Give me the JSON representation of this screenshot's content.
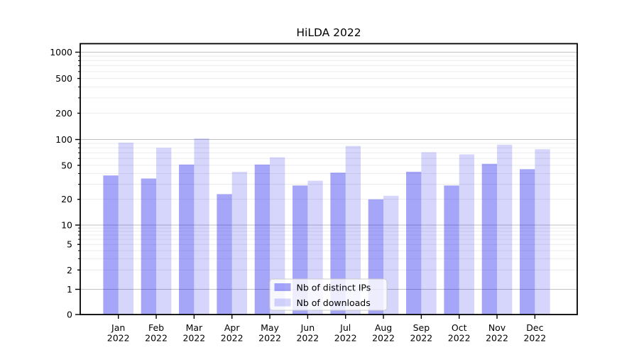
{
  "figure": {
    "title": "HiLDA 2022"
  },
  "chart_data": {
    "type": "bar",
    "title": "HiLDA 2022",
    "yscale": "symlog",
    "ylim": [
      0,
      1250
    ],
    "grid": "both",
    "legend_position": "lower-center",
    "xlabel": "",
    "ylabel": "",
    "categories": [
      "Jan 2022",
      "Feb 2022",
      "Mar 2022",
      "Apr 2022",
      "May 2022",
      "Jun 2022",
      "Jul 2022",
      "Aug 2022",
      "Sep 2022",
      "Oct 2022",
      "Nov 2022",
      "Dec 2022"
    ],
    "month_labels": [
      "Jan",
      "Feb",
      "Mar",
      "Apr",
      "May",
      "Jun",
      "Jul",
      "Aug",
      "Sep",
      "Oct",
      "Nov",
      "Dec"
    ],
    "year_label": "2022",
    "yticks": [
      0,
      1,
      2,
      5,
      10,
      20,
      50,
      100,
      200,
      500,
      1000
    ],
    "series": [
      {
        "name": "Nb of distinct IPs",
        "color": "#0000ee",
        "opacity": 0.35,
        "solid_color": "#a7a7f4",
        "values": [
          38,
          35,
          51,
          23,
          51,
          29,
          41,
          20,
          42,
          29,
          52,
          45
        ]
      },
      {
        "name": "Nb of downloads",
        "color": "#0000ee",
        "opacity": 0.16,
        "solid_color": "#d8d8f8",
        "values": [
          92,
          80,
          103,
          42,
          62,
          33,
          84,
          22,
          71,
          67,
          87,
          77
        ]
      }
    ],
    "colors": {
      "major_grid": "#c2c2c2",
      "minor_grid": "#eaeaea",
      "spine": "#000000",
      "legend_border": "#cccccc"
    }
  }
}
